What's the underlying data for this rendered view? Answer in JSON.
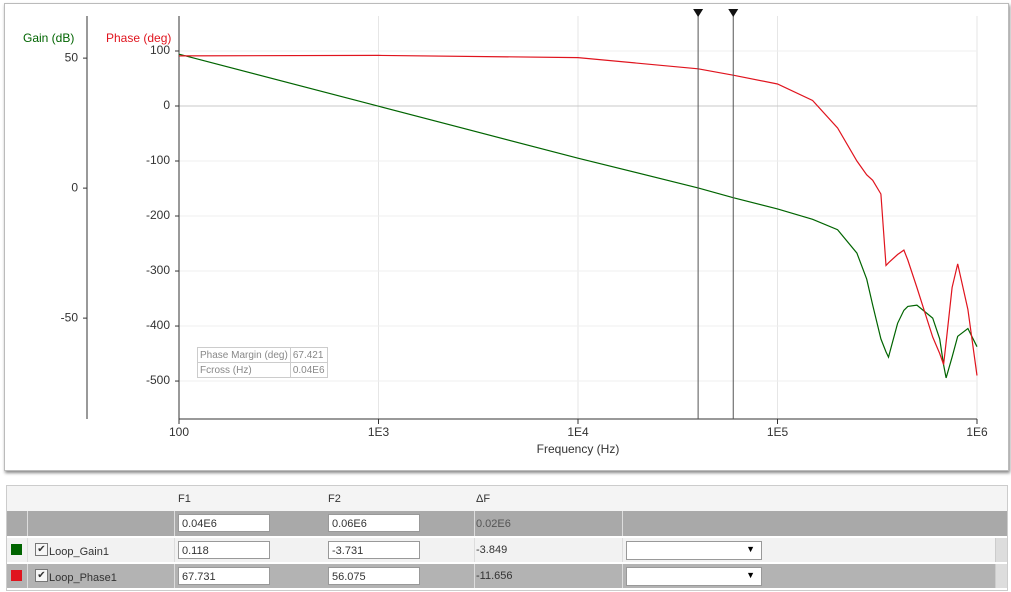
{
  "chart_data": {
    "type": "line",
    "x": [
      100,
      1000,
      10000,
      40000,
      60000,
      100000,
      150000,
      200000,
      250000,
      280000,
      300000,
      330000,
      350000,
      360000,
      400000,
      430000,
      450000,
      500000,
      600000,
      650000,
      680000,
      700000,
      750000,
      800000,
      900000,
      1000000
    ],
    "series": [
      {
        "name": "Gain (dB)",
        "color": "#006400",
        "values": [
          51.5,
          31.5,
          11.5,
          0.1,
          -3.7,
          -8,
          -12,
          -16,
          -25,
          -35,
          -45,
          -58,
          -63,
          -65,
          -52,
          -47,
          -45.5,
          -45,
          -50,
          -58,
          -68,
          -73,
          -65,
          -57,
          -54,
          -61
        ]
      },
      {
        "name": "Phase (deg)",
        "color": "#e0141e",
        "axis": "y2",
        "values": [
          91,
          92,
          88,
          67.7,
          56,
          40,
          10,
          -40,
          -100,
          -125,
          -135,
          -160,
          -290,
          -285,
          -270,
          -262,
          -280,
          -330,
          -420,
          -450,
          -470,
          -430,
          -330,
          -287,
          -370,
          -490
        ]
      }
    ],
    "xlabel": "Frequency (Hz)",
    "xscale": "log",
    "xlim": [
      100,
      1000000
    ],
    "xticks": [
      100,
      {
        "value": 1000,
        "label": "1E3"
      },
      {
        "value": 10000,
        "label": "1E4"
      },
      {
        "value": 100000,
        "label": "1E5"
      },
      {
        "value": 1000000,
        "label": "1E6"
      }
    ],
    "ylim": [
      -88.8,
      66.2
    ],
    "yticks": [
      50,
      0,
      -50
    ],
    "y2lim": [
      -569,
      163.6
    ],
    "y2ticks": [
      100,
      0,
      -100,
      -200,
      -300,
      -400,
      -500
    ],
    "grid": true,
    "cursors": [
      40000,
      60000
    ],
    "annotations": [
      {
        "label": "Phase Margin (deg)",
        "value": "67.421"
      },
      {
        "label": "Fcross (Hz)",
        "value": "0.04E6"
      }
    ]
  },
  "table": {
    "columns": [
      "F1",
      "F2",
      "ΔF"
    ],
    "frequency_row": [
      "0.04E6",
      "0.06E6",
      "0.02E6"
    ],
    "rows": [
      {
        "name": "Loop_Gain1",
        "color": "#006400",
        "values": [
          "0.118",
          "-3.731",
          "-3.849"
        ]
      },
      {
        "name": "Loop_Phase1",
        "color": "#e0141e",
        "values": [
          "67.731",
          "56.075",
          "-11.656"
        ]
      }
    ]
  }
}
